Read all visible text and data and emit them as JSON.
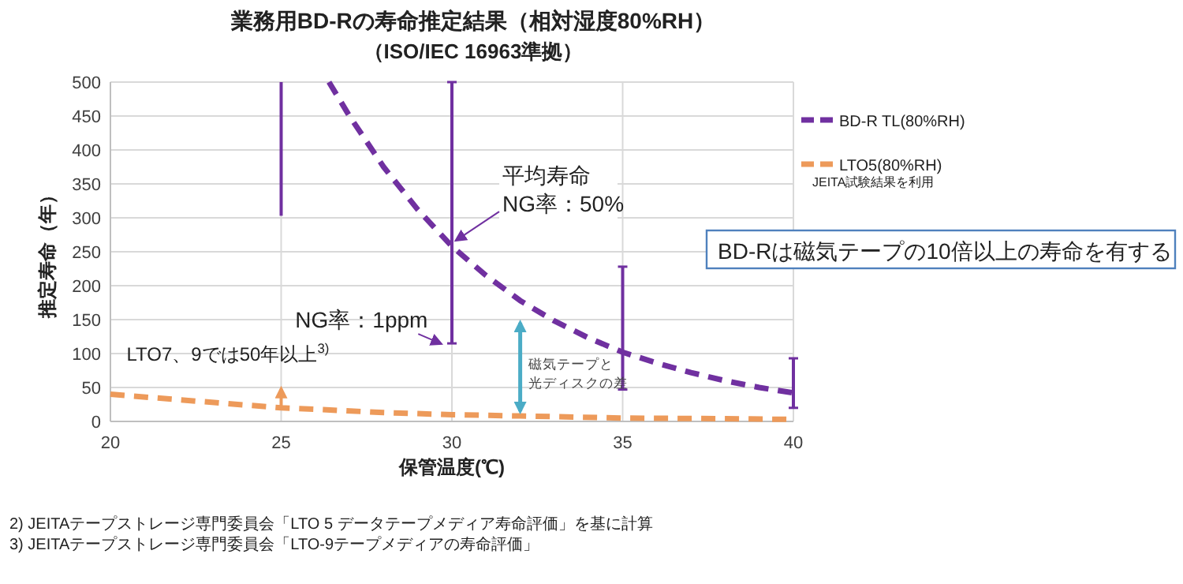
{
  "chart_data": {
    "type": "line",
    "title": "業務用BD-Rの寿命推定結果（相対湿度80%RH）",
    "subtitle": "（ISO/IEC 16963準拠）",
    "xlabel": "保管温度(℃)",
    "ylabel": "推定寿命（年）",
    "xlim": [
      20,
      40
    ],
    "xticks": [
      20,
      25,
      30,
      35,
      40
    ],
    "ylim": [
      0,
      500
    ],
    "yticks": [
      0,
      50,
      100,
      150,
      200,
      250,
      300,
      350,
      400,
      450,
      500
    ],
    "grid": true,
    "legend": "right",
    "line_style": "dashed",
    "marker": "none",
    "series": [
      {
        "name": "BD-R TL(80%RH)",
        "color": "#7030a0",
        "x": [
          26.4,
          27,
          28,
          29,
          30,
          31,
          32,
          33,
          34,
          35,
          36,
          37,
          38,
          39,
          40
        ],
        "values": [
          500,
          450,
          375,
          312,
          258,
          215,
          178,
          148,
          123,
          102,
          86,
          72,
          60,
          50,
          42
        ],
        "errors": [
          null,
          null,
          null,
          null,
          [
            115,
            500
          ],
          null,
          null,
          null,
          null,
          [
            47,
            228
          ],
          null,
          null,
          null,
          null,
          [
            20,
            93
          ]
        ]
      },
      {
        "name": "LTO5(80%RH)",
        "color": "#ed9a5a",
        "x": [
          20,
          22,
          24,
          25,
          26,
          28,
          30,
          32,
          35,
          38,
          40
        ],
        "values": [
          40,
          32,
          24,
          20,
          18,
          13,
          10,
          8,
          5,
          4,
          3
        ]
      },
      {
        "color": "#7030a0",
        "type": "bar",
        "x": [
          25
        ],
        "base": [
          303
        ],
        "values": [
          197
        ]
      }
    ],
    "annotations": [
      {
        "text": "平均寿命\nNG率：50%",
        "x": 30,
        "y": 258
      },
      {
        "text": "NG率：1ppm",
        "x": 29.8,
        "y": 115
      },
      {
        "text": "LTO7、9では50年以上$^{3)}$",
        "x": 25,
        "y": 20
      },
      {
        "text": "磁気テープと光ディスクの差",
        "x": 32,
        "y": 8
      },
      "BD-Rは磁気テープの10倍以上の寿命を有する",
      "JEITA試験結果を利用",
      "2) JEITAテープストレージ専門委員会「LTO 5 データテープメディア寿命評価」を基に計算",
      "3) JEITAテープストレージ専門委員会「LTO-9テープメディアの寿命評価」"
    ]
  }
}
